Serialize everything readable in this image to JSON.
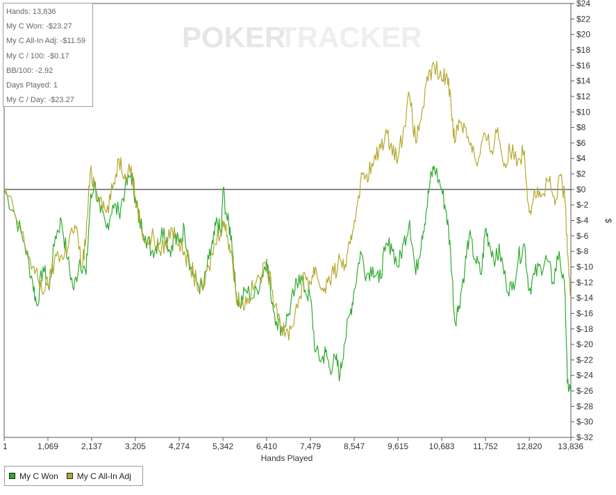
{
  "stats": [
    "Hands: 13,836",
    "My C Won: -$23.27",
    "My C All-In Adj: -$11.59",
    "My C / 100: -$0.17",
    "BB/100: -2.92",
    "Days Played: 1",
    "My C / Day: -$23.27"
  ],
  "watermark": {
    "poker": "POKER",
    "tracker": "TRACKER"
  },
  "legend": [
    {
      "label": "My C Won",
      "color": "#2eaa2e"
    },
    {
      "label": "My C All-In Adj",
      "color": "#b3a82b"
    }
  ],
  "chart_data": {
    "type": "line",
    "xlabel": "Hands Played",
    "ylabel": "$",
    "xlim": [
      1,
      13836
    ],
    "ylim": [
      -32,
      24
    ],
    "x_ticks": [
      "1",
      "1,069",
      "2,137",
      "3,205",
      "4,274",
      "5,342",
      "6,410",
      "7,479",
      "8,547",
      "9,615",
      "10,683",
      "11,752",
      "12,820",
      "13,836"
    ],
    "y_ticks": [
      "$24",
      "$22",
      "$20",
      "$18",
      "$16",
      "$14",
      "$12",
      "$10",
      "$8",
      "$6",
      "$4",
      "$2",
      "$0",
      "$-2",
      "$-4",
      "$-6",
      "$-8",
      "$-10",
      "$-12",
      "$-14",
      "$-16",
      "$-18",
      "$-20",
      "$-22",
      "$-24",
      "$-26",
      "$-28",
      "$-30",
      "$-32"
    ],
    "series": [
      {
        "name": "My C Won",
        "color": "#2eaa2e",
        "points": [
          [
            1,
            0
          ],
          [
            250,
            -3
          ],
          [
            500,
            -7
          ],
          [
            700,
            -12
          ],
          [
            800,
            -15
          ],
          [
            950,
            -10
          ],
          [
            1100,
            -13
          ],
          [
            1250,
            -6
          ],
          [
            1400,
            -4
          ],
          [
            1550,
            -9
          ],
          [
            1700,
            -13
          ],
          [
            1850,
            -9
          ],
          [
            2000,
            -11
          ],
          [
            2100,
            -2
          ],
          [
            2200,
            1
          ],
          [
            2350,
            -3
          ],
          [
            2500,
            -5
          ],
          [
            2650,
            -2
          ],
          [
            2800,
            -3
          ],
          [
            2950,
            0
          ],
          [
            3100,
            2
          ],
          [
            3205,
            -1
          ],
          [
            3300,
            -4
          ],
          [
            3450,
            -6
          ],
          [
            3600,
            -8
          ],
          [
            3750,
            -7
          ],
          [
            3900,
            -5
          ],
          [
            4050,
            -8
          ],
          [
            4150,
            -6
          ],
          [
            4274,
            -7
          ],
          [
            4400,
            -5
          ],
          [
            4550,
            -10
          ],
          [
            4700,
            -12
          ],
          [
            4850,
            -13
          ],
          [
            5000,
            -9
          ],
          [
            5100,
            -7
          ],
          [
            5200,
            -4
          ],
          [
            5300,
            -6
          ],
          [
            5342,
            0
          ],
          [
            5450,
            -4
          ],
          [
            5550,
            -6
          ],
          [
            5650,
            -13
          ],
          [
            5750,
            -15
          ],
          [
            5900,
            -13
          ],
          [
            6100,
            -14
          ],
          [
            6300,
            -11
          ],
          [
            6410,
            -9
          ],
          [
            6500,
            -13
          ],
          [
            6650,
            -17
          ],
          [
            6800,
            -18
          ],
          [
            6950,
            -16
          ],
          [
            7100,
            -13
          ],
          [
            7200,
            -11
          ],
          [
            7350,
            -13
          ],
          [
            7479,
            -14
          ],
          [
            7600,
            -21
          ],
          [
            7750,
            -22
          ],
          [
            7850,
            -21
          ],
          [
            7950,
            -23
          ],
          [
            8100,
            -22
          ],
          [
            8200,
            -24
          ],
          [
            8300,
            -20
          ],
          [
            8450,
            -16
          ],
          [
            8547,
            -13
          ],
          [
            8700,
            -8
          ],
          [
            8850,
            -11
          ],
          [
            9000,
            -10
          ],
          [
            9150,
            -12
          ],
          [
            9300,
            -8
          ],
          [
            9450,
            -7
          ],
          [
            9615,
            -10
          ],
          [
            9750,
            -7
          ],
          [
            9900,
            -4
          ],
          [
            10050,
            -11
          ],
          [
            10200,
            -6
          ],
          [
            10300,
            -3
          ],
          [
            10400,
            1
          ],
          [
            10500,
            3
          ],
          [
            10683,
            0
          ],
          [
            10800,
            -3
          ],
          [
            10900,
            -8
          ],
          [
            11000,
            -17
          ],
          [
            11100,
            -15
          ],
          [
            11250,
            -10
          ],
          [
            11350,
            -6
          ],
          [
            11500,
            -9
          ],
          [
            11650,
            -11
          ],
          [
            11752,
            -5
          ],
          [
            11850,
            -7
          ],
          [
            12000,
            -9
          ],
          [
            12100,
            -8
          ],
          [
            12250,
            -12
          ],
          [
            12400,
            -13
          ],
          [
            12550,
            -9
          ],
          [
            12700,
            -7
          ],
          [
            12820,
            -13
          ],
          [
            12950,
            -11
          ],
          [
            13100,
            -10
          ],
          [
            13250,
            -9
          ],
          [
            13400,
            -12
          ],
          [
            13550,
            -8
          ],
          [
            13700,
            -14
          ],
          [
            13750,
            -25
          ],
          [
            13836,
            -26
          ]
        ]
      },
      {
        "name": "My C All-In Adj",
        "color": "#b3a82b",
        "points": [
          [
            1,
            0
          ],
          [
            250,
            -3
          ],
          [
            500,
            -7
          ],
          [
            700,
            -10
          ],
          [
            850,
            -12
          ],
          [
            1000,
            -13
          ],
          [
            1150,
            -11
          ],
          [
            1300,
            -8
          ],
          [
            1450,
            -9
          ],
          [
            1600,
            -6
          ],
          [
            1750,
            -5
          ],
          [
            1900,
            -10
          ],
          [
            2000,
            -6
          ],
          [
            2100,
            2
          ],
          [
            2200,
            1
          ],
          [
            2350,
            -1
          ],
          [
            2500,
            -3
          ],
          [
            2650,
            0
          ],
          [
            2800,
            4
          ],
          [
            2950,
            2
          ],
          [
            3100,
            3
          ],
          [
            3205,
            -1
          ],
          [
            3350,
            -5
          ],
          [
            3500,
            -7
          ],
          [
            3650,
            -6
          ],
          [
            3800,
            -8
          ],
          [
            3950,
            -7
          ],
          [
            4100,
            -5
          ],
          [
            4274,
            -7
          ],
          [
            4400,
            -8
          ],
          [
            4550,
            -10
          ],
          [
            4700,
            -12
          ],
          [
            4850,
            -13
          ],
          [
            5000,
            -10
          ],
          [
            5150,
            -7
          ],
          [
            5342,
            -4
          ],
          [
            5450,
            -6
          ],
          [
            5550,
            -8
          ],
          [
            5650,
            -13
          ],
          [
            5800,
            -15
          ],
          [
            5950,
            -14
          ],
          [
            6150,
            -12
          ],
          [
            6410,
            -10
          ],
          [
            6550,
            -13
          ],
          [
            6700,
            -16
          ],
          [
            6850,
            -19
          ],
          [
            7000,
            -18
          ],
          [
            7200,
            -14
          ],
          [
            7350,
            -11
          ],
          [
            7479,
            -12
          ],
          [
            7600,
            -10
          ],
          [
            7750,
            -13
          ],
          [
            7900,
            -12
          ],
          [
            8050,
            -11
          ],
          [
            8200,
            -9
          ],
          [
            8350,
            -10
          ],
          [
            8450,
            -7
          ],
          [
            8547,
            -4
          ],
          [
            8700,
            1
          ],
          [
            8850,
            2
          ],
          [
            9000,
            3
          ],
          [
            9150,
            5
          ],
          [
            9300,
            7
          ],
          [
            9450,
            6
          ],
          [
            9615,
            4
          ],
          [
            9750,
            8
          ],
          [
            9900,
            12
          ],
          [
            10050,
            6
          ],
          [
            10200,
            10
          ],
          [
            10350,
            14
          ],
          [
            10500,
            16
          ],
          [
            10683,
            14
          ],
          [
            10800,
            15
          ],
          [
            10900,
            12
          ],
          [
            11000,
            6
          ],
          [
            11100,
            9
          ],
          [
            11250,
            8
          ],
          [
            11400,
            6
          ],
          [
            11550,
            3
          ],
          [
            11752,
            7
          ],
          [
            11900,
            5
          ],
          [
            12050,
            8
          ],
          [
            12200,
            3
          ],
          [
            12350,
            5
          ],
          [
            12550,
            4
          ],
          [
            12700,
            5
          ],
          [
            12820,
            -3
          ],
          [
            12950,
            0
          ],
          [
            13100,
            -1
          ],
          [
            13300,
            1
          ],
          [
            13450,
            -2
          ],
          [
            13600,
            2
          ],
          [
            13700,
            -2
          ],
          [
            13750,
            -8
          ],
          [
            13836,
            -14
          ]
        ]
      }
    ]
  }
}
